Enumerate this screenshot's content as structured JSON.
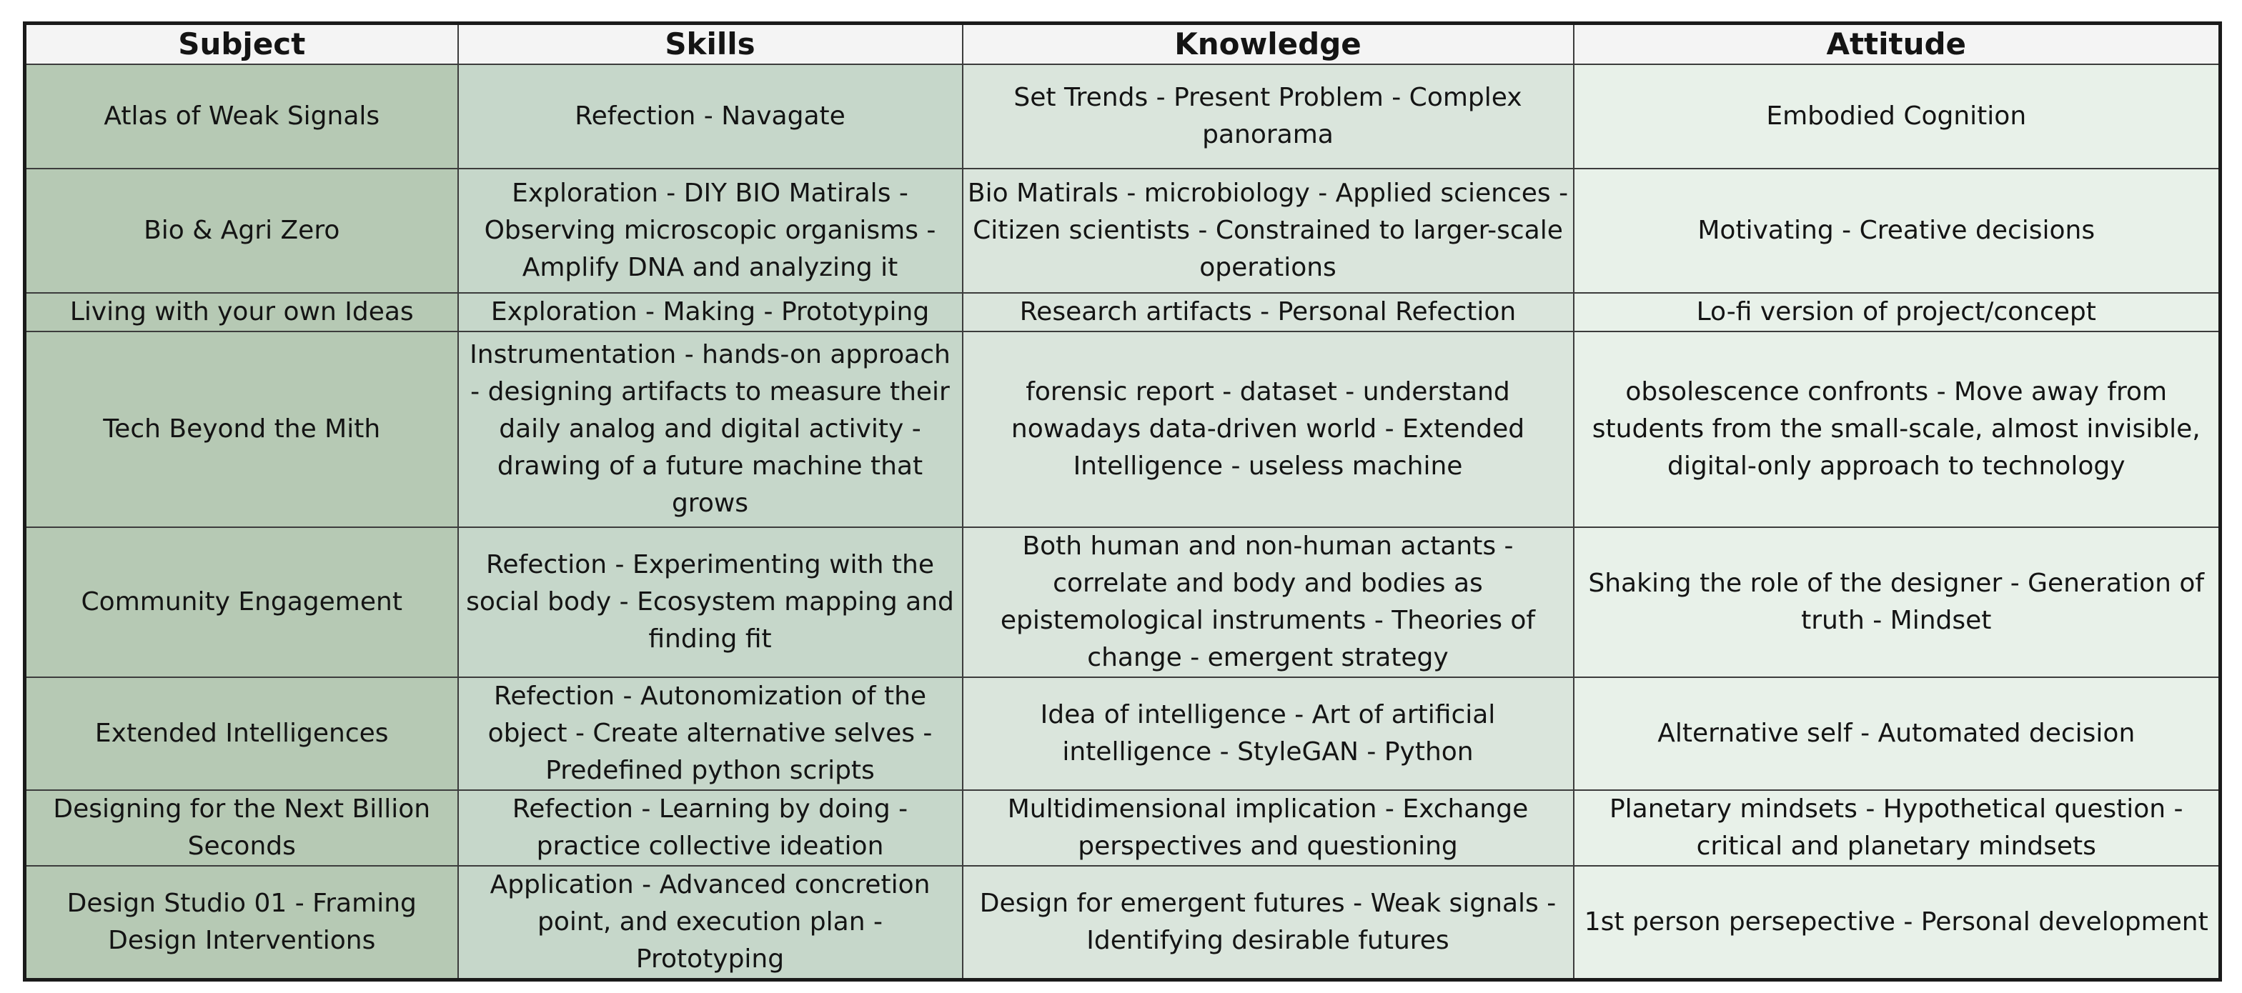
{
  "table": {
    "headers": {
      "subject": "Subject",
      "skills": "Skills",
      "knowledge": "Knowledge",
      "attitude": "Attitude"
    },
    "rows": [
      {
        "subject": "Atlas of Weak Signals",
        "skills": "Refection - Navagate",
        "knowledge": "Set Trends - Present Problem -  Complex panorama",
        "attitude": "Embodied Cognition"
      },
      {
        "subject": "Bio & Agri Zero",
        "skills": "Exploration - DIY BIO Matirals - Observing microscopic organisms - Amplify DNA and analyzing it",
        "knowledge": "Bio Matirals - microbiology - Applied sciences - Citizen scientists - Constrained to larger-scale operations",
        "attitude": "Motivating - Creative decisions"
      },
      {
        "subject": "Living with your own Ideas",
        "skills": "Exploration - Making - Prototyping",
        "knowledge": "Research artifacts - Personal Refection",
        "attitude": "Lo-fi version of project/concept"
      },
      {
        "subject": "Tech Beyond the Mith",
        "skills": "Instrumentation - hands-on approach -  designing artifacts to measure their daily analog and digital activity -  drawing of a future machine that grows",
        "knowledge": "forensic report - dataset - understand nowadays data-driven world -  Extended Intelligence - useless machine",
        "attitude": "obsolescence confronts - Move away from students from the small-scale, almost invisible, digital-only approach to technology"
      },
      {
        "subject": "Community Engagement",
        "skills": "Refection - Experimenting with the social body - Ecosystem mapping and finding fit",
        "knowledge": "Both human and non-human actants - correlate and body and bodies as epistemological instruments - Theories of change - emergent strategy",
        "attitude": "Shaking the role of the designer - Generation of truth - Mindset"
      },
      {
        "subject": "Extended Intelligences",
        "skills": "Refection - Autonomization of the object - Create alternative selves - Predefined python scripts",
        "knowledge": "Idea of intelligence - Art of artificial intelligence - StyleGAN - Python",
        "attitude": "Alternative self - Automated decision"
      },
      {
        "subject": "Designing for the Next Billion Seconds",
        "skills": "Refection - Learning by doing - practice collective ideation",
        "knowledge": "Multidimensional implication - Exchange perspectives and questioning",
        "attitude": "Planetary mindsets - Hypothetical question - critical and planetary mindsets"
      },
      {
        "subject": "Design Studio 01 - Framing Design Interventions",
        "skills": "Application - Advanced concretion point, and execution plan - Prototyping",
        "knowledge": "Design for emergent futures -  Weak signals - Identifying desirable futures",
        "attitude": "1st person persepective - Personal development"
      }
    ]
  }
}
